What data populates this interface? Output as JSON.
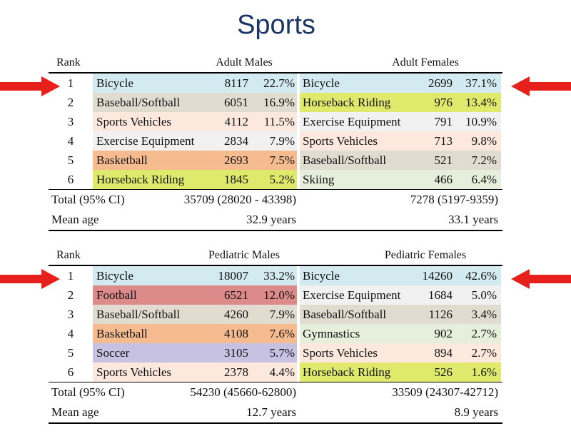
{
  "title": "Sports",
  "colors": {
    "title": "#1d3566",
    "arrow": "#e8201b",
    "Bicycle": "#d3eaf0",
    "Baseball/Softball": "#e0dcd0",
    "Sports Vehicles": "#fce8dd",
    "Exercise Equipment": "#f1f1f1",
    "Basketball": "#f6bc90",
    "Horseback Riding": "#dfea6c",
    "Skiing": "#e6efdc",
    "Football": "#dd8a8a",
    "Soccer": "#c8c2e2",
    "Gymnastics": "#e6efdc"
  },
  "tables": [
    {
      "rank_header": "Rank",
      "male_header": "Adult Males",
      "female_header": "Adult Females",
      "rows": [
        {
          "rank": "1",
          "male": {
            "sport": "Bicycle",
            "count": "8117",
            "pct": "22.7%"
          },
          "female": {
            "sport": "Bicycle",
            "count": "2699",
            "pct": "37.1%"
          }
        },
        {
          "rank": "2",
          "male": {
            "sport": "Baseball/Softball",
            "count": "6051",
            "pct": "16.9%"
          },
          "female": {
            "sport": "Horseback Riding",
            "count": "976",
            "pct": "13.4%"
          }
        },
        {
          "rank": "3",
          "male": {
            "sport": "Sports Vehicles",
            "count": "4112",
            "pct": "11.5%"
          },
          "female": {
            "sport": "Exercise Equipment",
            "count": "791",
            "pct": "10.9%"
          }
        },
        {
          "rank": "4",
          "male": {
            "sport": "Exercise Equipment",
            "count": "2834",
            "pct": "7.9%"
          },
          "female": {
            "sport": "Sports Vehicles",
            "count": "713",
            "pct": "9.8%"
          }
        },
        {
          "rank": "5",
          "male": {
            "sport": "Basketball",
            "count": "2693",
            "pct": "7.5%"
          },
          "female": {
            "sport": "Baseball/Softball",
            "count": "521",
            "pct": "7.2%"
          }
        },
        {
          "rank": "6",
          "male": {
            "sport": "Horseback Riding",
            "count": "1845",
            "pct": "5.2%"
          },
          "female": {
            "sport": "Skiing",
            "count": "466",
            "pct": "6.4%"
          }
        }
      ],
      "total_label": "Total (95% CI)",
      "male_total": "35709 (28020 - 43398)",
      "female_total": "7278 (5197-9359)",
      "mean_label": "Mean age",
      "male_mean": "32.9 years",
      "female_mean": "33.1 years"
    },
    {
      "rank_header": "Rank",
      "male_header": "Pediatric Males",
      "female_header": "Pediatric Females",
      "rows": [
        {
          "rank": "1",
          "male": {
            "sport": "Bicycle",
            "count": "18007",
            "pct": "33.2%"
          },
          "female": {
            "sport": "Bicycle",
            "count": "14260",
            "pct": "42.6%"
          }
        },
        {
          "rank": "2",
          "male": {
            "sport": "Football",
            "count": "6521",
            "pct": "12.0%"
          },
          "female": {
            "sport": "Exercise Equipment",
            "count": "1684",
            "pct": "5.0%"
          }
        },
        {
          "rank": "3",
          "male": {
            "sport": "Baseball/Softball",
            "count": "4260",
            "pct": "7.9%"
          },
          "female": {
            "sport": "Baseball/Softball",
            "count": "1126",
            "pct": "3.4%"
          }
        },
        {
          "rank": "4",
          "male": {
            "sport": "Basketball",
            "count": "4108",
            "pct": "7.6%"
          },
          "female": {
            "sport": "Gymnastics",
            "count": "902",
            "pct": "2.7%"
          }
        },
        {
          "rank": "5",
          "male": {
            "sport": "Soccer",
            "count": "3105",
            "pct": "5.7%"
          },
          "female": {
            "sport": "Sports Vehicles",
            "count": "894",
            "pct": "2.7%"
          }
        },
        {
          "rank": "6",
          "male": {
            "sport": "Sports Vehicles",
            "count": "2378",
            "pct": "4.4%"
          },
          "female": {
            "sport": "Horseback Riding",
            "count": "526",
            "pct": "1.6%"
          }
        }
      ],
      "total_label": "Total (95% CI)",
      "male_total": "54230 (45660-62800)",
      "female_total": "33509 (24307-42712)",
      "mean_label": "Mean age",
      "male_mean": "12.7 years",
      "female_mean": "8.9 years"
    }
  ]
}
